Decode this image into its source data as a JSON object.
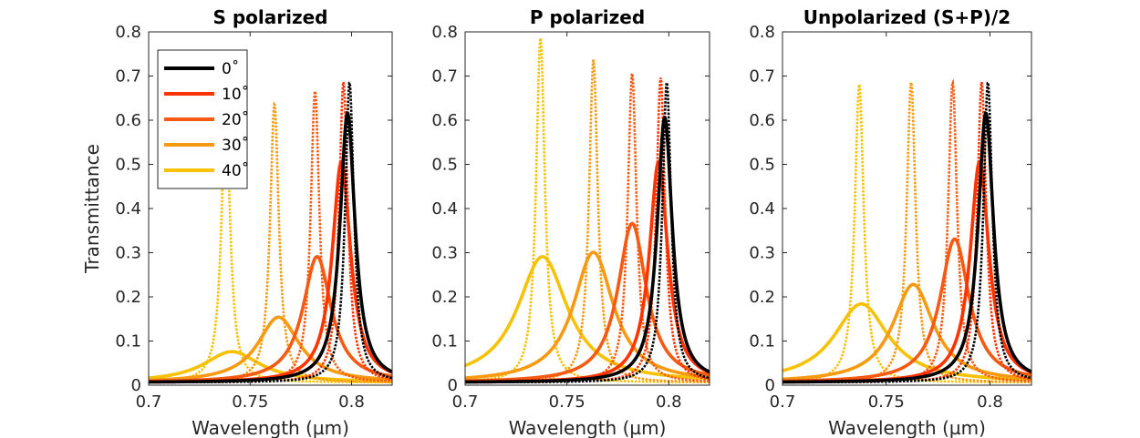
{
  "chart_data": [
    {
      "type": "line",
      "title": "S polarized",
      "xlabel": "Wavelength (µm)",
      "ylabel": "Transmittance",
      "xlim": [
        0.7,
        0.82
      ],
      "ylim": [
        0,
        0.8
      ],
      "xticks": [
        "0.7",
        "0.75",
        "0.8"
      ],
      "yticks": [
        "0",
        "0.1",
        "0.2",
        "0.3",
        "0.4",
        "0.5",
        "0.6",
        "0.7",
        "0.8"
      ],
      "legend_position": "top-left",
      "series": [
        {
          "name": "0˚",
          "color": "#000000",
          "solid": {
            "center": 0.798,
            "peak": 0.61,
            "width": 0.0045
          },
          "dotted": {
            "center": 0.799,
            "peak": 0.68,
            "width": 0.0026
          }
        },
        {
          "name": "10˚",
          "color": "#ff3300",
          "solid": {
            "center": 0.795,
            "peak": 0.5,
            "width": 0.0055
          },
          "dotted": {
            "center": 0.796,
            "peak": 0.68,
            "width": 0.0026
          }
        },
        {
          "name": "20˚",
          "color": "#f65a12",
          "solid": {
            "center": 0.783,
            "peak": 0.285,
            "width": 0.0085
          },
          "dotted": {
            "center": 0.782,
            "peak": 0.66,
            "width": 0.0026
          }
        },
        {
          "name": "30˚",
          "color": "#f79a12",
          "solid": {
            "center": 0.764,
            "peak": 0.148,
            "width": 0.0125
          },
          "dotted": {
            "center": 0.762,
            "peak": 0.63,
            "width": 0.0026
          }
        },
        {
          "name": "40˚",
          "color": "#f7c203",
          "solid": {
            "center": 0.741,
            "peak": 0.07,
            "width": 0.017
          },
          "dotted": {
            "center": 0.738,
            "peak": 0.62,
            "width": 0.0026
          }
        }
      ]
    },
    {
      "type": "line",
      "title": "P polarized",
      "xlabel": "Wavelength (µm)",
      "ylabel": "",
      "xlim": [
        0.7,
        0.82
      ],
      "ylim": [
        0,
        0.8
      ],
      "xticks": [
        "0.7",
        "0.75",
        "0.8"
      ],
      "yticks": [
        "0",
        "0.1",
        "0.2",
        "0.3",
        "0.4",
        "0.5",
        "0.6",
        "0.7",
        "0.8"
      ],
      "series": [
        {
          "name": "0˚",
          "color": "#000000",
          "solid": {
            "center": 0.798,
            "peak": 0.6,
            "width": 0.0045
          },
          "dotted": {
            "center": 0.799,
            "peak": 0.68,
            "width": 0.0026
          }
        },
        {
          "name": "10˚",
          "color": "#ff3300",
          "solid": {
            "center": 0.795,
            "peak": 0.5,
            "width": 0.0055
          },
          "dotted": {
            "center": 0.796,
            "peak": 0.69,
            "width": 0.0026
          }
        },
        {
          "name": "20˚",
          "color": "#f65a12",
          "solid": {
            "center": 0.782,
            "peak": 0.36,
            "width": 0.0085
          },
          "dotted": {
            "center": 0.782,
            "peak": 0.7,
            "width": 0.0026
          }
        },
        {
          "name": "30˚",
          "color": "#f79a12",
          "solid": {
            "center": 0.763,
            "peak": 0.295,
            "width": 0.012
          },
          "dotted": {
            "center": 0.763,
            "peak": 0.73,
            "width": 0.0026
          }
        },
        {
          "name": "40˚",
          "color": "#f7c203",
          "solid": {
            "center": 0.738,
            "peak": 0.285,
            "width": 0.015
          },
          "dotted": {
            "center": 0.737,
            "peak": 0.78,
            "width": 0.0026
          }
        }
      ]
    },
    {
      "type": "line",
      "title": "Unpolarized (S+P)/2",
      "xlabel": "Wavelength (µm)",
      "ylabel": "",
      "xlim": [
        0.7,
        0.82
      ],
      "ylim": [
        0,
        0.8
      ],
      "xticks": [
        "0.7",
        "0.75",
        "0.8"
      ],
      "yticks": [
        "0",
        "0.1",
        "0.2",
        "0.3",
        "0.4",
        "0.5",
        "0.6",
        "0.7",
        "0.8"
      ],
      "series": [
        {
          "name": "0˚",
          "color": "#000000",
          "solid": {
            "center": 0.798,
            "peak": 0.61,
            "width": 0.0045
          },
          "dotted": {
            "center": 0.799,
            "peak": 0.68,
            "width": 0.0026
          }
        },
        {
          "name": "10˚",
          "color": "#ff3300",
          "solid": {
            "center": 0.795,
            "peak": 0.5,
            "width": 0.0055
          },
          "dotted": {
            "center": 0.796,
            "peak": 0.68,
            "width": 0.0026
          }
        },
        {
          "name": "20˚",
          "color": "#f65a12",
          "solid": {
            "center": 0.783,
            "peak": 0.325,
            "width": 0.0085
          },
          "dotted": {
            "center": 0.782,
            "peak": 0.68,
            "width": 0.0026
          }
        },
        {
          "name": "30˚",
          "color": "#f79a12",
          "solid": {
            "center": 0.763,
            "peak": 0.222,
            "width": 0.012
          },
          "dotted": {
            "center": 0.762,
            "peak": 0.68,
            "width": 0.0026
          }
        },
        {
          "name": "40˚",
          "color": "#f7c203",
          "solid": {
            "center": 0.738,
            "peak": 0.178,
            "width": 0.016
          },
          "dotted": {
            "center": 0.737,
            "peak": 0.675,
            "width": 0.0026
          }
        }
      ]
    }
  ]
}
